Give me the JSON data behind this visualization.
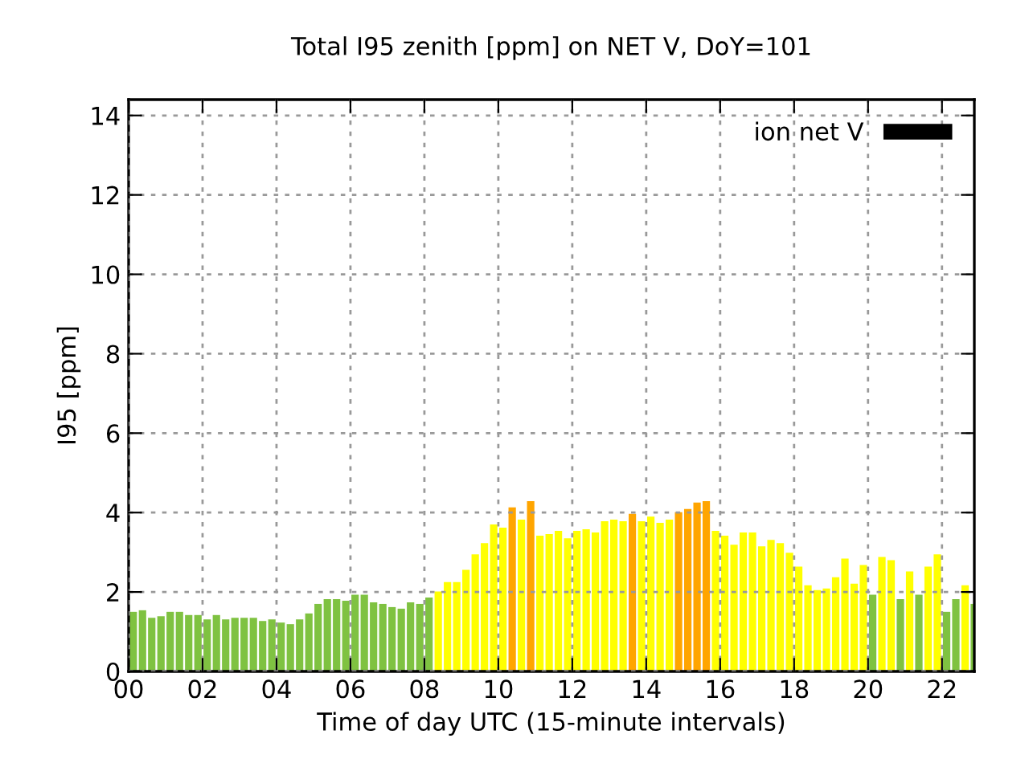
{
  "chart_data": {
    "type": "bar",
    "title": "Total I95 zenith [ppm] on NET V, DoY=101",
    "xlabel": "Time of day UTC (15-minute intervals)",
    "ylabel": "I95 [ppm]",
    "x": [
      0.125,
      0.375,
      0.625,
      0.875,
      1.125,
      1.375,
      1.625,
      1.875,
      2.125,
      2.375,
      2.625,
      2.875,
      3.125,
      3.375,
      3.625,
      3.875,
      4.125,
      4.375,
      4.625,
      4.875,
      5.125,
      5.375,
      5.625,
      5.875,
      6.125,
      6.375,
      6.625,
      6.875,
      7.125,
      7.375,
      7.625,
      7.875,
      8.125,
      8.375,
      8.625,
      8.875,
      9.125,
      9.375,
      9.625,
      9.875,
      10.125,
      10.375,
      10.625,
      10.875,
      11.125,
      11.375,
      11.625,
      11.875,
      12.125,
      12.375,
      12.625,
      12.875,
      13.125,
      13.375,
      13.625,
      13.875,
      14.125,
      14.375,
      14.625,
      14.875,
      15.125,
      15.375,
      15.625,
      15.875,
      16.125,
      16.375,
      16.625,
      16.875,
      17.125,
      17.375,
      17.625,
      17.875,
      18.125,
      18.375,
      18.625,
      18.875,
      19.125,
      19.375,
      19.625,
      19.875,
      20.125,
      20.375,
      20.625,
      20.875,
      21.125,
      21.375,
      21.625,
      21.875,
      22.125,
      22.375,
      22.625,
      22.875
    ],
    "series": [
      {
        "name": "ion net V",
        "color": "#000000",
        "values": [
          1.5,
          1.54,
          1.35,
          1.39,
          1.5,
          1.5,
          1.42,
          1.42,
          1.31,
          1.42,
          1.31,
          1.35,
          1.35,
          1.35,
          1.27,
          1.31,
          1.23,
          1.19,
          1.31,
          1.46,
          1.7,
          1.82,
          1.82,
          1.78,
          1.93,
          1.93,
          1.74,
          1.7,
          1.62,
          1.58,
          1.74,
          1.7,
          1.86,
          2.01,
          2.25,
          2.25,
          2.56,
          2.95,
          3.23,
          3.7,
          3.62,
          4.13,
          3.82,
          4.29,
          3.42,
          3.46,
          3.54,
          3.35,
          3.54,
          3.58,
          3.5,
          3.78,
          3.82,
          3.78,
          3.97,
          3.78,
          3.9,
          3.74,
          3.82,
          4.01,
          4.09,
          4.25,
          4.29,
          3.54,
          3.42,
          3.19,
          3.5,
          3.5,
          3.15,
          3.31,
          3.23,
          2.99,
          2.64,
          2.17,
          2.05,
          2.09,
          2.37,
          2.84,
          2.21,
          2.68,
          1.93,
          2.88,
          2.8,
          1.82,
          2.52,
          1.93,
          2.64,
          2.95,
          1.5,
          1.82,
          2.17,
          1.7
        ],
        "colors": [
          "#7fc241",
          "#7fc241",
          "#7fc241",
          "#7fc241",
          "#7fc241",
          "#7fc241",
          "#7fc241",
          "#7fc241",
          "#7fc241",
          "#7fc241",
          "#7fc241",
          "#7fc241",
          "#7fc241",
          "#7fc241",
          "#7fc241",
          "#7fc241",
          "#7fc241",
          "#7fc241",
          "#7fc241",
          "#7fc241",
          "#7fc241",
          "#7fc241",
          "#7fc241",
          "#7fc241",
          "#7fc241",
          "#7fc241",
          "#7fc241",
          "#7fc241",
          "#7fc241",
          "#7fc241",
          "#7fc241",
          "#7fc241",
          "#7fc241",
          "#ffff00",
          "#ffff00",
          "#ffff00",
          "#ffff00",
          "#ffff00",
          "#ffff00",
          "#ffff00",
          "#ffff00",
          "#ffa500",
          "#ffff00",
          "#ffa500",
          "#ffff00",
          "#ffff00",
          "#ffff00",
          "#ffff00",
          "#ffff00",
          "#ffff00",
          "#ffff00",
          "#ffff00",
          "#ffff00",
          "#ffff00",
          "#ffa500",
          "#ffff00",
          "#ffff00",
          "#ffff00",
          "#ffff00",
          "#ffa500",
          "#ffa500",
          "#ffa500",
          "#ffa500",
          "#ffff00",
          "#ffff00",
          "#ffff00",
          "#ffff00",
          "#ffff00",
          "#ffff00",
          "#ffff00",
          "#ffff00",
          "#ffff00",
          "#ffff00",
          "#ffff00",
          "#ffff00",
          "#ffff00",
          "#ffff00",
          "#ffff00",
          "#ffff00",
          "#ffff00",
          "#7fc241",
          "#ffff00",
          "#ffff00",
          "#7fc241",
          "#ffff00",
          "#7fc241",
          "#ffff00",
          "#ffff00",
          "#7fc241",
          "#7fc241",
          "#ffff00",
          "#7fc241"
        ]
      }
    ],
    "xlim": [
      0,
      22.875
    ],
    "ylim": [
      0,
      14.4
    ],
    "xticks": [
      {
        "value": 0,
        "label": "00"
      },
      {
        "value": 2,
        "label": "02"
      },
      {
        "value": 4,
        "label": "04"
      },
      {
        "value": 6,
        "label": "06"
      },
      {
        "value": 8,
        "label": "08"
      },
      10,
      12,
      14,
      16,
      18,
      20,
      22
    ],
    "yticks": [
      0,
      2,
      4,
      6,
      8,
      10,
      12,
      14
    ],
    "grid": true,
    "legend": "top right"
  }
}
